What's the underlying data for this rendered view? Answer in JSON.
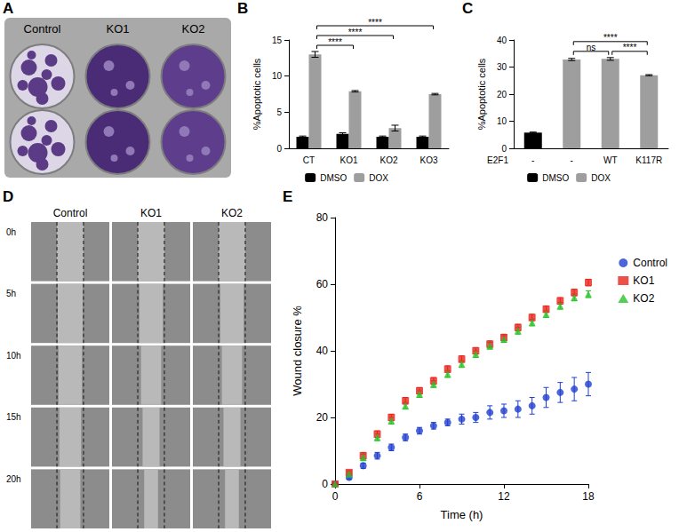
{
  "panels": [
    {
      "letter": "A",
      "type": "image",
      "labels": [
        "Control",
        "KO1",
        "KO2"
      ]
    },
    {
      "letter": "D",
      "type": "image",
      "column_labels": [
        "Control",
        "KO1",
        "KO2"
      ],
      "row_labels": [
        "0h",
        "5h",
        "10h",
        "15h",
        "20h"
      ]
    }
  ],
  "chart_data": [
    {
      "letter": "B",
      "type": "bar",
      "categories": [
        "CT",
        "KO1",
        "KO2",
        "KO3"
      ],
      "series": [
        {
          "name": "DMSO",
          "color": "#000000",
          "values": [
            1.6,
            2.0,
            1.6,
            1.6
          ],
          "errors": [
            0.1,
            0.15,
            0.1,
            0.1
          ]
        },
        {
          "name": "DOX",
          "color": "#9e9e9e",
          "values": [
            13.0,
            7.9,
            2.8,
            7.5
          ],
          "errors": [
            0.4,
            0.1,
            0.4,
            0.1
          ]
        }
      ],
      "y_label": "%Apoptotic cells",
      "ylim": [
        0,
        15
      ],
      "yticks": [
        0,
        5,
        10,
        15
      ],
      "grid": false,
      "legend": "bottom",
      "comparisons": [
        {
          "between": [
            0,
            1
          ],
          "series": "DOX",
          "label": "****"
        },
        {
          "between": [
            0,
            2
          ],
          "series": "DOX",
          "label": "****"
        },
        {
          "between": [
            0,
            3
          ],
          "series": "DOX",
          "label": "****"
        }
      ]
    },
    {
      "letter": "C",
      "type": "bar",
      "x_label": "E2F1",
      "categories": [
        "-",
        "-",
        "WT",
        "K117R"
      ],
      "series": [
        {
          "name": "DMSO",
          "color": "#000000",
          "values": [
            5.8,
            null,
            null,
            null
          ],
          "errors": [
            0.2,
            null,
            null,
            null
          ]
        },
        {
          "name": "DOX",
          "color": "#9e9e9e",
          "values": [
            null,
            32.8,
            33.0,
            27.0
          ],
          "errors": [
            null,
            0.4,
            0.5,
            0.2
          ]
        }
      ],
      "y_label": "%Apoptotic cells",
      "ylim": [
        0,
        40
      ],
      "yticks": [
        0,
        10,
        20,
        30,
        40
      ],
      "grid": false,
      "legend": "bottom",
      "comparisons": [
        {
          "between": [
            1,
            2
          ],
          "label": "ns"
        },
        {
          "between": [
            2,
            3
          ],
          "label": "****"
        },
        {
          "between": [
            1,
            3
          ],
          "label": "****"
        }
      ]
    },
    {
      "letter": "E",
      "type": "scatter",
      "x": [
        0,
        1,
        2,
        3,
        4,
        5,
        6,
        7,
        8,
        9,
        10,
        11,
        12,
        13,
        14,
        15,
        16,
        17,
        18
      ],
      "series": [
        {
          "name": "Control",
          "color": "#1f3fd0",
          "marker": "circle",
          "values": [
            0,
            2,
            5.5,
            8.5,
            11,
            14,
            16,
            17.5,
            18.5,
            19.5,
            20,
            21.5,
            22,
            22.5,
            23.5,
            26,
            27.5,
            28.5,
            30
          ],
          "errors": [
            0,
            0.5,
            0.8,
            1,
            1,
            1,
            1,
            1,
            1,
            1.5,
            1.5,
            2,
            2,
            2.5,
            2.5,
            3,
            3,
            3.5,
            3.5
          ]
        },
        {
          "name": "KO1",
          "color": "#e8231c",
          "marker": "square",
          "values": [
            0,
            3.5,
            8.5,
            15,
            20,
            25,
            28,
            31,
            34.5,
            37.5,
            40,
            42,
            44,
            47,
            50,
            52.5,
            55,
            57.5,
            60.5
          ],
          "errors": [
            0,
            0.5,
            1,
            1,
            1,
            1,
            1,
            1,
            1,
            1,
            1,
            1,
            1,
            1,
            1,
            1,
            1,
            1,
            1
          ]
        },
        {
          "name": "KO2",
          "color": "#28c428",
          "marker": "triangle",
          "values": [
            0,
            3,
            8,
            14,
            19,
            23.5,
            27,
            30,
            33,
            36,
            39,
            41.5,
            43.5,
            46,
            48.5,
            51,
            53.5,
            56,
            57
          ],
          "errors": [
            0,
            0.5,
            1,
            1,
            1,
            1,
            1,
            1,
            1,
            1,
            1,
            1,
            1,
            1,
            1,
            1,
            1,
            1,
            1
          ]
        }
      ],
      "x_label": "Time (h)",
      "y_label": "Wound closure %",
      "xlim": [
        0,
        18
      ],
      "xticks": [
        0,
        6,
        12,
        18
      ],
      "ylim": [
        0,
        80
      ],
      "yticks": [
        0,
        20,
        40,
        60,
        80
      ],
      "grid": false,
      "legend": "right"
    }
  ]
}
